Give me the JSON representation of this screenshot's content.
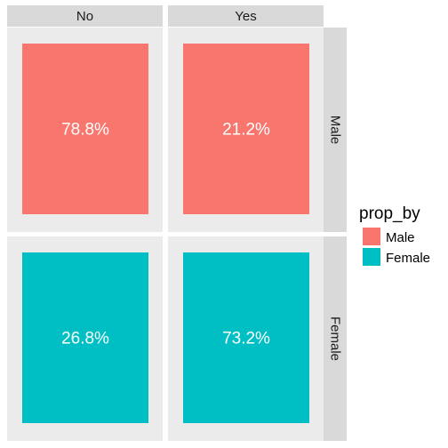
{
  "chart_data": {
    "type": "bar",
    "facet_cols": [
      "No",
      "Yes"
    ],
    "facet_rows": [
      "Male",
      "Female"
    ],
    "cells": [
      {
        "col": "No",
        "row": "Male",
        "label": "78.8%",
        "value": 78.8
      },
      {
        "col": "Yes",
        "row": "Male",
        "label": "21.2%",
        "value": 21.2
      },
      {
        "col": "No",
        "row": "Female",
        "label": "26.8%",
        "value": 26.8
      },
      {
        "col": "Yes",
        "row": "Female",
        "label": "73.2%",
        "value": 73.2
      }
    ],
    "legend": {
      "title": "prop_by",
      "position": "right",
      "items": [
        {
          "label": "Male",
          "color": "#F8766D"
        },
        {
          "label": "Female",
          "color": "#00BFC4"
        }
      ]
    },
    "grid": false,
    "xlabel": "",
    "ylabel": "",
    "title": ""
  },
  "colors": {
    "Male": "#F8766D",
    "Female": "#00BFC4",
    "strip_background": "#D9D9D9",
    "panel_background": "#EBEBEB"
  }
}
